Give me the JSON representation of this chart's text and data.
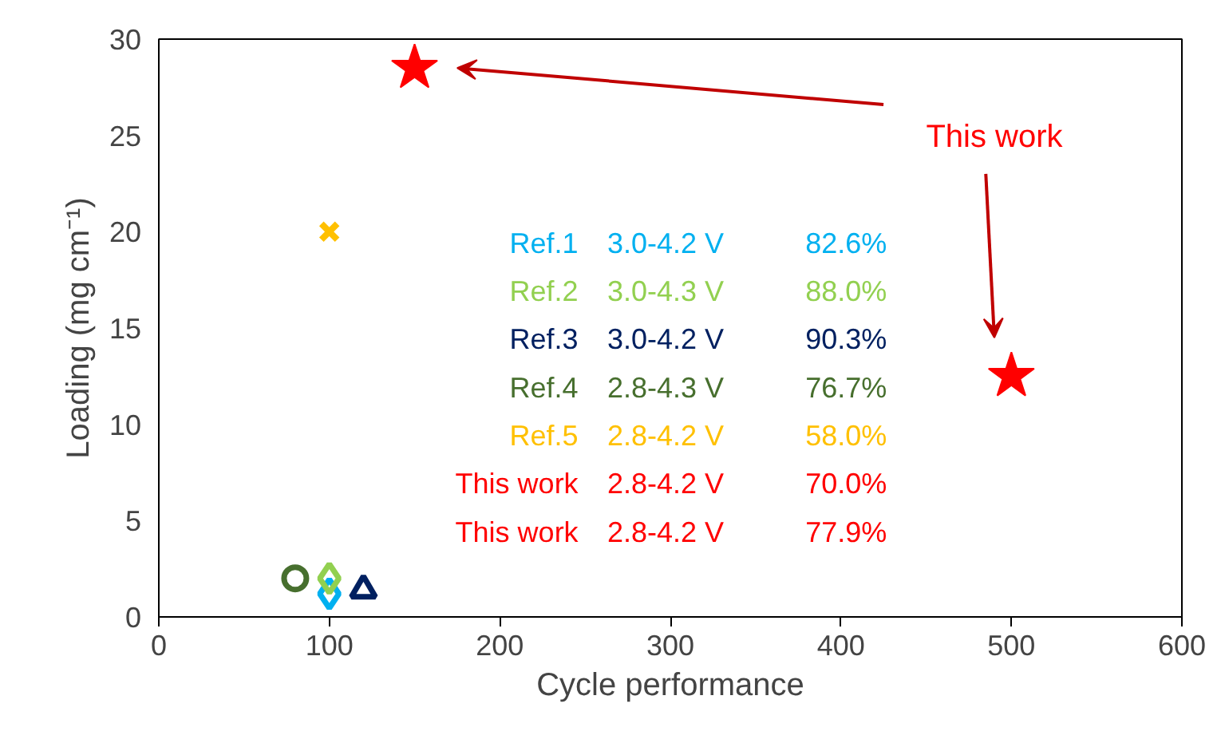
{
  "chart_data": {
    "type": "scatter",
    "xlabel": "Cycle performance",
    "ylabel": "Loading (mg cm⁻¹)",
    "xlim": [
      0,
      600
    ],
    "ylim": [
      0,
      30
    ],
    "xticks": [
      0,
      100,
      200,
      300,
      400,
      500,
      600
    ],
    "yticks": [
      0,
      5,
      10,
      15,
      20,
      25,
      30
    ],
    "grid": false,
    "series": [
      {
        "name": "Ref.1",
        "color": "#00b0f0",
        "marker": "diamond",
        "x": [
          100
        ],
        "values": [
          1.2
        ]
      },
      {
        "name": "Ref.2",
        "color": "#92d050",
        "marker": "diamond",
        "x": [
          100
        ],
        "values": [
          2.0
        ]
      },
      {
        "name": "Ref.3",
        "color": "#002060",
        "marker": "triangle",
        "x": [
          120
        ],
        "values": [
          1.4
        ]
      },
      {
        "name": "Ref.4",
        "color": "#476f2e",
        "marker": "circle",
        "x": [
          80
        ],
        "values": [
          2.0
        ]
      },
      {
        "name": "Ref.5",
        "color": "#ffc000",
        "marker": "cross",
        "x": [
          100
        ],
        "values": [
          20
        ]
      },
      {
        "name": "This work",
        "color": "#ff0000",
        "marker": "star",
        "x": [
          150,
          500
        ],
        "values": [
          28.5,
          12.5
        ]
      }
    ],
    "annotations": [
      "3.0-4.2 V",
      "82.6%",
      "3.0-4.3 V",
      "88.0%",
      "3.0-4.2 V",
      "90.3%",
      "2.8-4.3 V",
      "76.7%",
      "2.8-4.2 V",
      "58.0%",
      "2.8-4.2 V",
      "70.0%",
      "2.8-4.2 V",
      "77.9%",
      "This work"
    ]
  }
}
